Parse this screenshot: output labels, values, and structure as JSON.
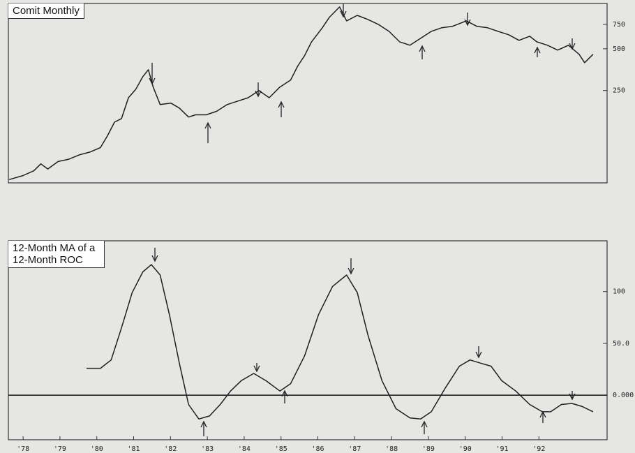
{
  "chart_data": [
    {
      "type": "line",
      "title": "Comit Monthly",
      "log_scale": true,
      "color": "#1e1e1e",
      "x": [
        1977.62,
        1978.0,
        1978.29,
        1978.48,
        1978.67,
        1978.95,
        1979.24,
        1979.53,
        1979.81,
        1980.1,
        1980.29,
        1980.48,
        1980.67,
        1980.86,
        1981.06,
        1981.25,
        1981.4,
        1981.53,
        1981.72,
        1982.01,
        1982.24,
        1982.49,
        1982.68,
        1982.97,
        1983.25,
        1983.54,
        1983.83,
        1984.11,
        1984.4,
        1984.68,
        1984.97,
        1985.26,
        1985.45,
        1985.64,
        1985.83,
        1986.12,
        1986.31,
        1986.59,
        1986.78,
        1987.07,
        1987.36,
        1987.64,
        1987.93,
        1988.22,
        1988.5,
        1988.79,
        1989.08,
        1989.36,
        1989.65,
        1990.03,
        1990.32,
        1990.61,
        1990.89,
        1991.18,
        1991.46,
        1991.75,
        1991.94,
        1992.23,
        1992.51,
        1992.8,
        1993.09,
        1993.24,
        1993.47
      ],
      "values": [
        57,
        61,
        66,
        74,
        68,
        77,
        80,
        86,
        90,
        97,
        118,
        148,
        157,
        222,
        256,
        315,
        353,
        265,
        198,
        203,
        187,
        161,
        167,
        167,
        177,
        198,
        210,
        222,
        250,
        222,
        265,
        297,
        374,
        446,
        561,
        708,
        842,
        1002,
        794,
        871,
        813,
        750,
        668,
        561,
        530,
        595,
        668,
        708,
        725,
        794,
        725,
        708,
        668,
        631,
        575,
        616,
        561,
        530,
        489,
        530,
        456,
        397,
        456
      ],
      "xlim": [
        1977.6,
        1993.85
      ],
      "ylim": [
        54,
        1060
      ],
      "yticks": [
        750,
        500,
        250
      ]
    },
    {
      "type": "line",
      "title": "12-Month MA of a 12-Month ROC",
      "zero_line": true,
      "color": "#1e1e1e",
      "x": [
        1979.72,
        1980.1,
        1980.39,
        1980.67,
        1980.96,
        1981.25,
        1981.48,
        1981.72,
        1981.97,
        1982.24,
        1982.49,
        1982.77,
        1983.06,
        1983.35,
        1983.63,
        1983.92,
        1984.26,
        1984.59,
        1984.97,
        1985.26,
        1985.64,
        1986.02,
        1986.4,
        1986.78,
        1987.07,
        1987.36,
        1987.74,
        1988.12,
        1988.5,
        1988.79,
        1989.08,
        1989.46,
        1989.84,
        1990.13,
        1990.41,
        1990.7,
        1990.99,
        1991.37,
        1991.75,
        1992.09,
        1992.32,
        1992.61,
        1992.9,
        1993.18,
        1993.47
      ],
      "values": [
        26,
        26,
        34,
        65,
        99,
        119,
        126,
        116,
        78,
        31,
        -9,
        -23,
        -20,
        -9,
        4,
        14,
        21,
        14,
        4,
        11,
        38,
        78,
        105,
        116,
        99,
        58,
        14,
        -13,
        -22,
        -23,
        -16,
        7,
        28,
        34,
        31,
        28,
        14,
        4,
        -9,
        -16,
        -16,
        -9,
        -8,
        -11,
        -16
      ],
      "xlim": [
        1977.6,
        1993.85
      ],
      "ylim": [
        -43,
        149
      ],
      "yticks": [
        100,
        {
          "value": 50,
          "label": "50.0"
        },
        {
          "value": 0,
          "label": "0.000"
        }
      ],
      "xticks": [
        {
          "value": 1978,
          "label": "'78"
        },
        {
          "value": 1979,
          "label": "'79"
        },
        {
          "value": 1980,
          "label": "'80"
        },
        {
          "value": 1981,
          "label": "'81"
        },
        {
          "value": 1982,
          "label": "'82"
        },
        {
          "value": 1983,
          "label": "'83"
        },
        {
          "value": 1984,
          "label": "'84"
        },
        {
          "value": 1985,
          "label": "'85"
        },
        {
          "value": 1986,
          "label": "'86"
        },
        {
          "value": 1987,
          "label": "'87"
        },
        {
          "value": 1988,
          "label": "'88"
        },
        {
          "value": 1989,
          "label": "'89"
        },
        {
          "value": 1990,
          "label": "'90"
        },
        {
          "value": 1991,
          "label": "'91"
        },
        {
          "value": 1992,
          "label": "'92"
        }
      ]
    }
  ]
}
